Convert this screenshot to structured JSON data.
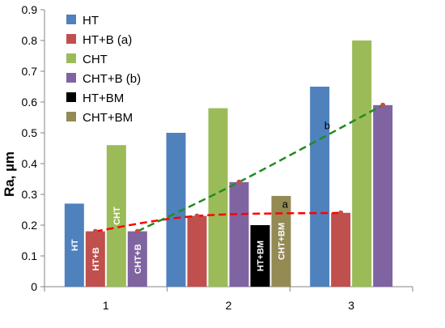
{
  "chart_data": {
    "type": "bar",
    "title": "",
    "xlabel": "",
    "ylabel": "Ra, µm",
    "ylim": [
      0,
      0.9
    ],
    "yticks": [
      "0",
      "0.1",
      "0.2",
      "0.3",
      "0.4",
      "0.5",
      "0.6",
      "0.7",
      "0.8",
      "0.9"
    ],
    "categories": [
      "1",
      "2",
      "3"
    ],
    "grid": false,
    "legend_position": "top-left",
    "series": [
      {
        "name": "HT",
        "color": "#4F81BD",
        "values": [
          0.27,
          0.5,
          0.65
        ],
        "inbar_labels": [
          "HT",
          "",
          ""
        ]
      },
      {
        "name": "HT+B (a)",
        "color": "#C0504D",
        "values": [
          0.18,
          0.23,
          0.24
        ],
        "inbar_labels": [
          "HT+B",
          "",
          ""
        ]
      },
      {
        "name": "CHT",
        "color": "#9BBB59",
        "values": [
          0.46,
          0.58,
          0.8
        ],
        "inbar_labels": [
          "CHT",
          "",
          ""
        ]
      },
      {
        "name": "CHT+B (b)",
        "color": "#8064A2",
        "values": [
          0.18,
          0.34,
          0.59
        ],
        "inbar_labels": [
          "CHT+B",
          "",
          ""
        ]
      },
      {
        "name": "HT+BM",
        "color": "#000000",
        "values": [
          null,
          0.2,
          null
        ],
        "inbar_labels": [
          "",
          "HT+BM",
          ""
        ]
      },
      {
        "name": "CHT+BM",
        "color": "#948A54",
        "values": [
          null,
          0.295,
          null
        ],
        "inbar_labels": [
          "",
          "CHT+BM",
          ""
        ]
      }
    ],
    "trendlines": [
      {
        "label": "a",
        "color": "#FF0000",
        "style": "dashed",
        "points": [
          [
            0.18,
            1
          ],
          [
            0.23,
            2
          ],
          [
            0.24,
            3
          ]
        ],
        "point_x": [
          1,
          2,
          3
        ],
        "point_y": [
          0.18,
          0.23,
          0.24
        ]
      },
      {
        "label": "b",
        "color": "#228B22",
        "style": "dashed",
        "point_x": [
          1,
          2,
          3
        ],
        "point_y": [
          0.18,
          0.34,
          0.59
        ]
      }
    ]
  }
}
